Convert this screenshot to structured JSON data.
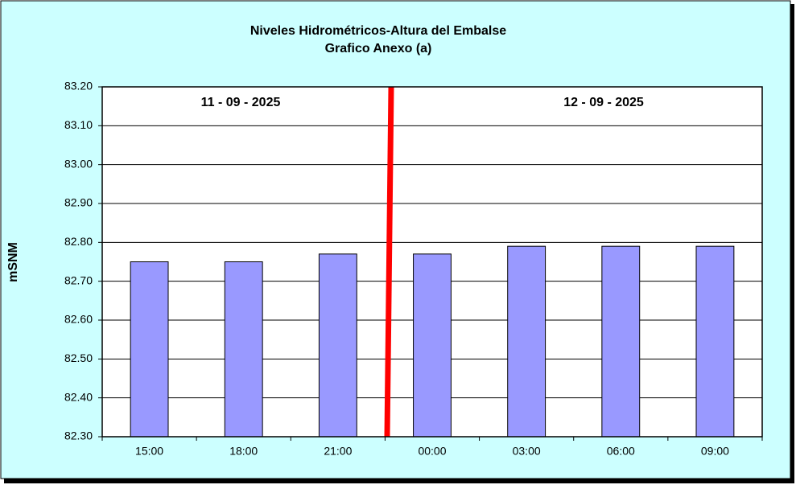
{
  "chart_data": {
    "type": "bar",
    "title": "Niveles Hidrométricos-Altura del Embalse",
    "subtitle": "Grafico Anexo (a)",
    "y_label": "mSNM",
    "annotations": [
      "11 - 09 - 2025",
      "12 - 09 - 2025"
    ],
    "categories": [
      "15:00",
      "18:00",
      "21:00",
      "00:00",
      "03:00",
      "06:00",
      "09:00"
    ],
    "values": [
      82.75,
      82.75,
      82.77,
      82.77,
      82.79,
      82.79,
      82.79
    ],
    "color": "#9999ff",
    "ylim": [
      82.3,
      83.2
    ],
    "yticks": [
      {
        "value": 82.3,
        "label": "82.30"
      },
      {
        "value": 82.4,
        "label": "82.40"
      },
      {
        "value": 82.5,
        "label": "82.50"
      },
      {
        "value": 82.6,
        "label": "82.60"
      },
      {
        "value": 82.7,
        "label": "82.70"
      },
      {
        "value": 82.8,
        "label": "82.80"
      },
      {
        "value": 82.9,
        "label": "82.90"
      },
      {
        "value": 83.0,
        "label": "83.00"
      },
      {
        "value": 83.1,
        "label": "83.10"
      },
      {
        "value": 83.2,
        "label": "83.20"
      }
    ],
    "grid": true
  }
}
